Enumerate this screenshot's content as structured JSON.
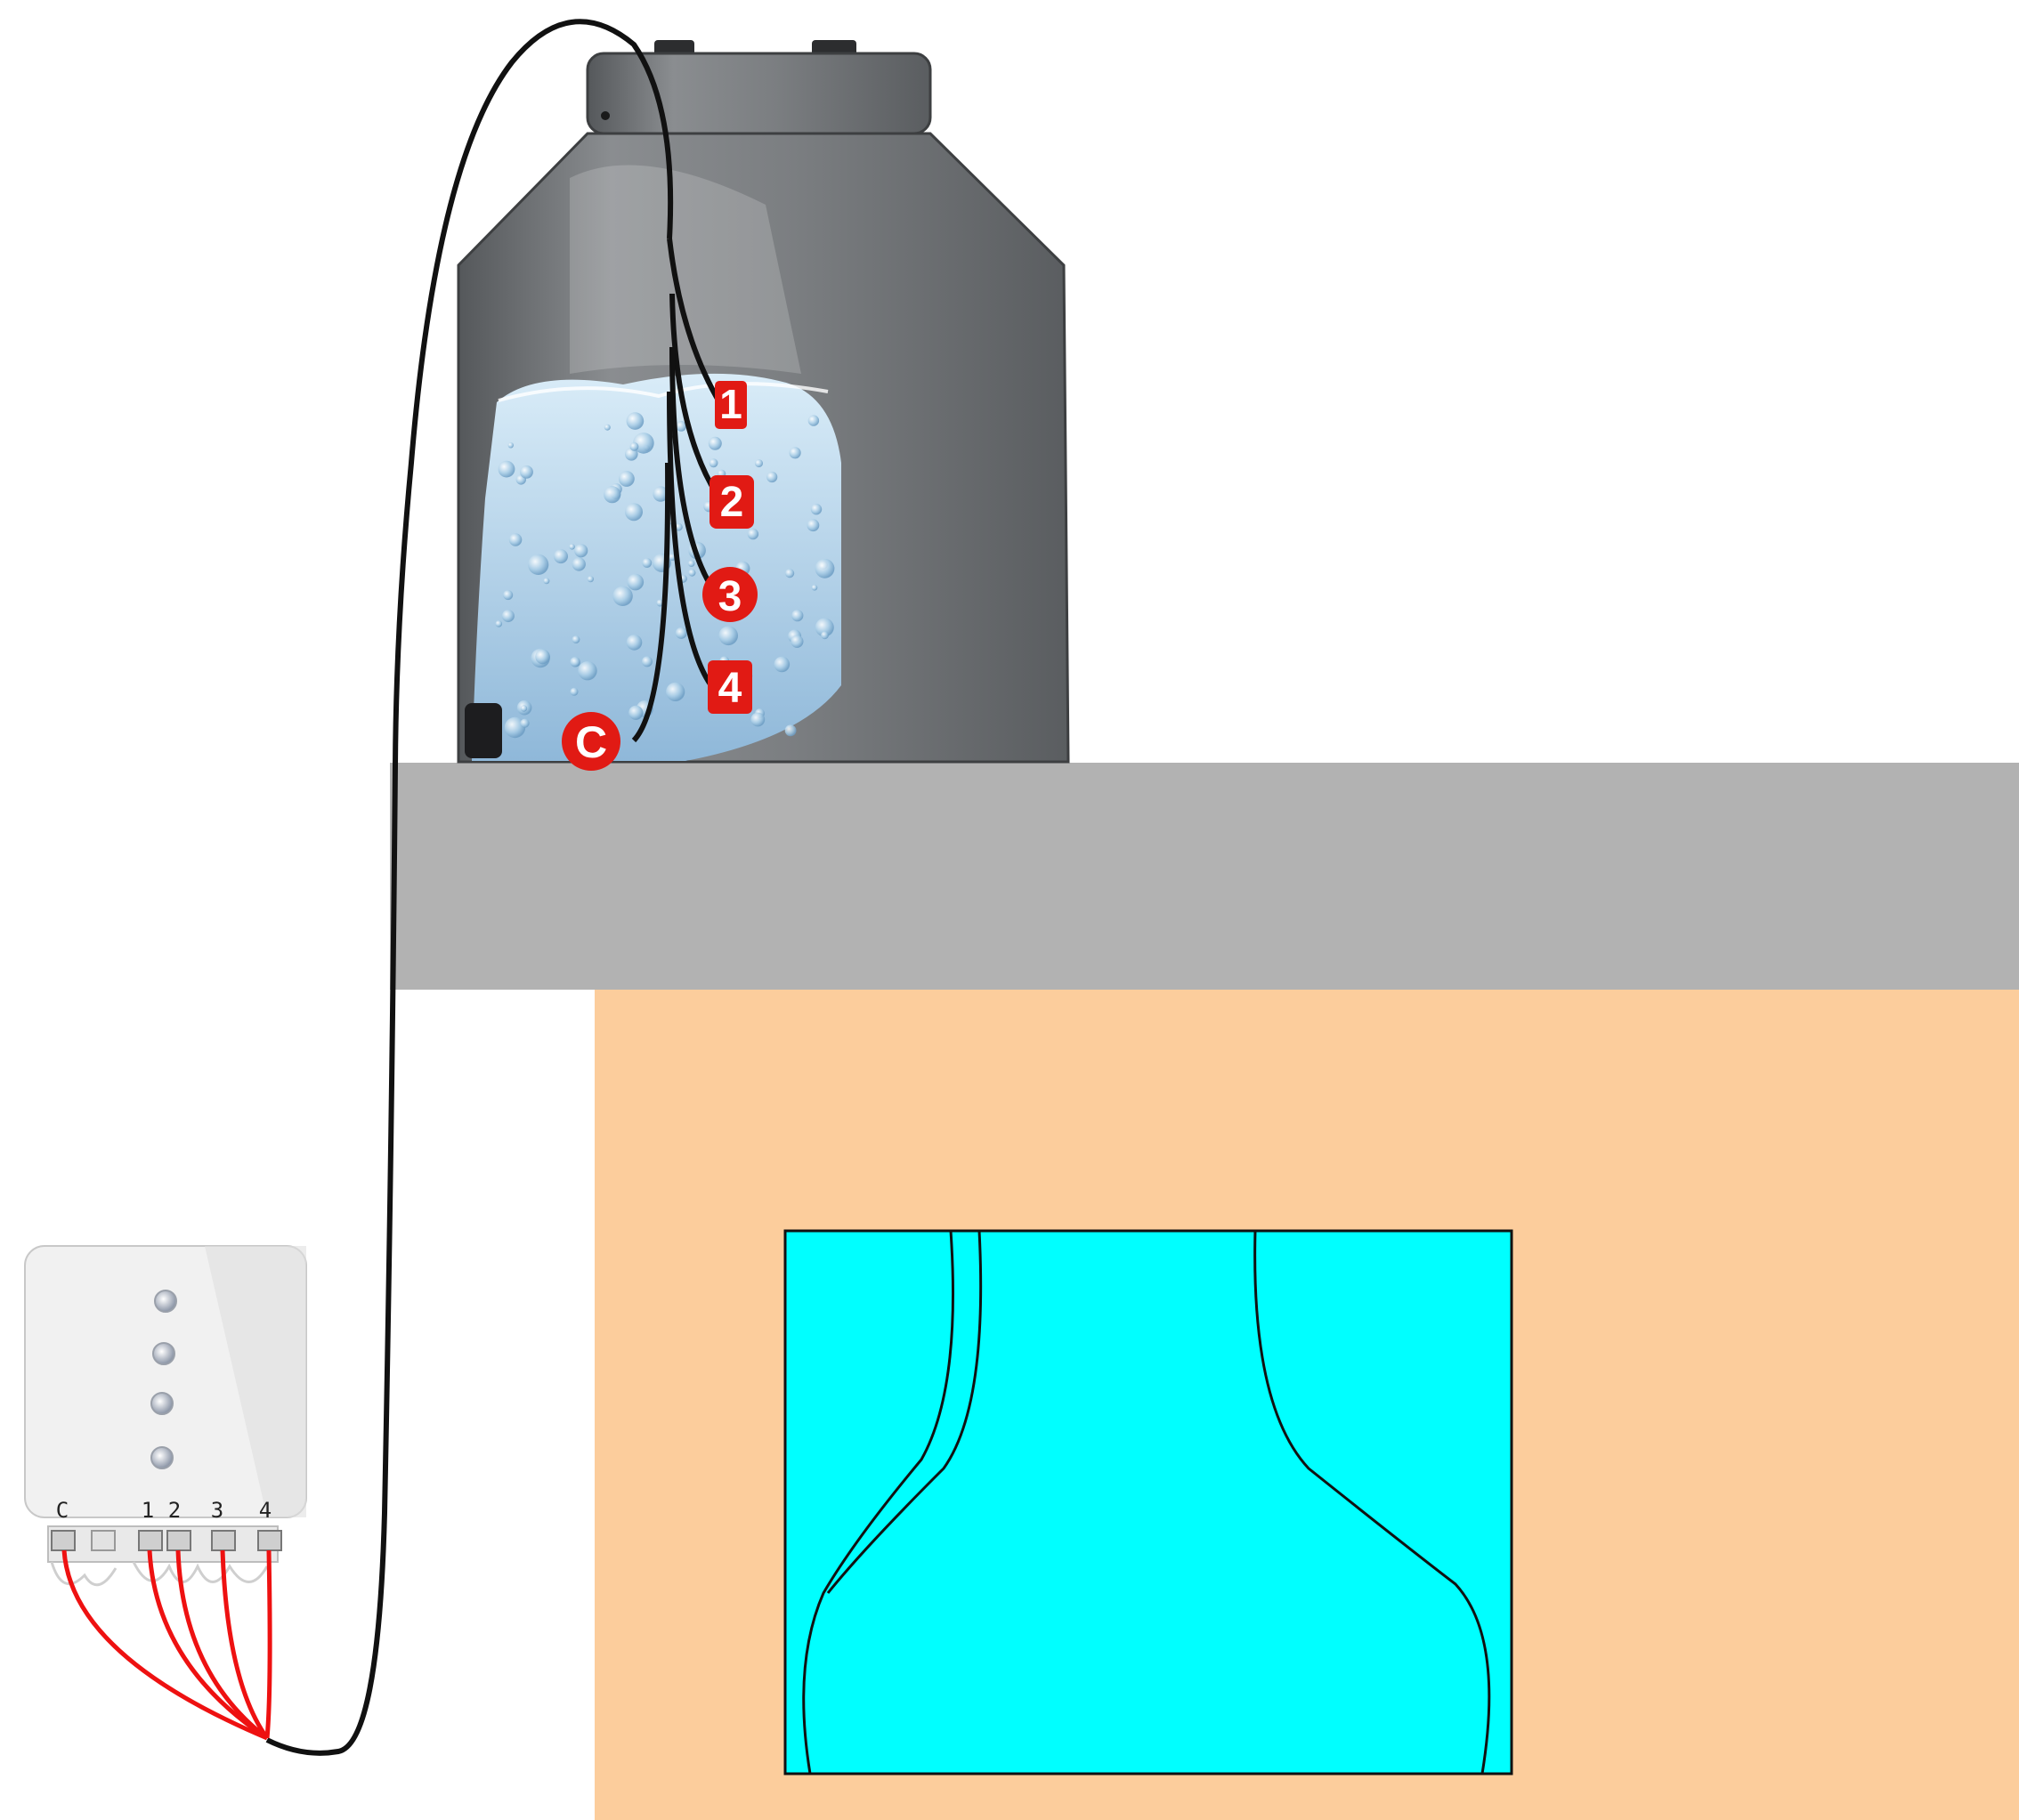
{
  "diagram": {
    "sensor_labels": [
      "1",
      "2",
      "3",
      "4",
      "C"
    ],
    "terminal_labels": [
      "C",
      "1",
      "2",
      "3",
      "4"
    ],
    "indicator_led_count": 4
  },
  "colors": {
    "tank_body": "#7a7d80",
    "water": "#b9d7ee",
    "floor_slab": "#b2b2b2",
    "room_wall": "#fccd9c",
    "screen": "#00ffff",
    "cable": "#111111",
    "wire": "#ee1111",
    "badge": "#e11a14",
    "module": "#f1f1f1"
  },
  "icons": {
    "tank": "water-tank-icon",
    "controller": "level-controller-icon",
    "screen": "tv-screen-icon"
  }
}
